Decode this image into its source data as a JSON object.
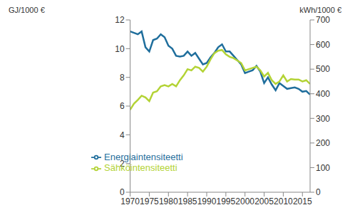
{
  "chart_data": {
    "type": "line",
    "y_label": "GJ/1000 €",
    "y2_label": "kWh/1000 €",
    "x": [
      1970,
      1971,
      1972,
      1973,
      1974,
      1975,
      1976,
      1977,
      1978,
      1979,
      1980,
      1981,
      1982,
      1983,
      1984,
      1985,
      1986,
      1987,
      1988,
      1989,
      1990,
      1991,
      1992,
      1993,
      1994,
      1995,
      1996,
      1997,
      1998,
      1999,
      2000,
      2001,
      2002,
      2003,
      2004,
      2005,
      2006,
      2007,
      2008,
      2009,
      2010,
      2011,
      2012,
      2013,
      2014,
      2015,
      2016,
      2017
    ],
    "xlim": [
      1970,
      2017
    ],
    "xticks": [
      1970,
      1975,
      1980,
      1985,
      1990,
      1995,
      2000,
      2005,
      2010,
      2015
    ],
    "ylim": [
      0,
      12
    ],
    "yticks": [
      0,
      2,
      4,
      6,
      8,
      10,
      12
    ],
    "y2lim": [
      0,
      700
    ],
    "y2ticks": [
      0,
      100,
      200,
      300,
      400,
      500,
      600,
      700
    ],
    "grid": false,
    "legend": "lower left",
    "series": [
      {
        "name": "Energiaintensiteetti",
        "color": "#1f6e9c",
        "axis": "y",
        "values": [
          11.2,
          11.1,
          11.0,
          11.2,
          10.1,
          9.8,
          10.6,
          10.7,
          11.0,
          10.8,
          10.2,
          10.0,
          9.5,
          9.45,
          9.5,
          9.8,
          9.5,
          9.7,
          9.3,
          8.9,
          9.0,
          9.4,
          9.7,
          10.1,
          10.3,
          9.8,
          9.8,
          9.5,
          9.2,
          8.9,
          8.3,
          8.4,
          8.5,
          8.8,
          8.4,
          7.6,
          8.0,
          7.5,
          7.1,
          7.6,
          7.4,
          7.2,
          7.25,
          7.3,
          7.2,
          7.0,
          7.05,
          6.8
        ]
      },
      {
        "name": "Sähköintensiteetti",
        "color": "#b3d335",
        "axis": "y2",
        "values": [
          335,
          360,
          375,
          392,
          385,
          370,
          405,
          410,
          430,
          435,
          430,
          440,
          430,
          455,
          475,
          500,
          495,
          510,
          505,
          490,
          510,
          540,
          565,
          575,
          578,
          560,
          550,
          545,
          535,
          525,
          495,
          500,
          505,
          510,
          495,
          470,
          485,
          455,
          440,
          450,
          475,
          450,
          460,
          458,
          458,
          450,
          455,
          440
        ]
      }
    ]
  }
}
